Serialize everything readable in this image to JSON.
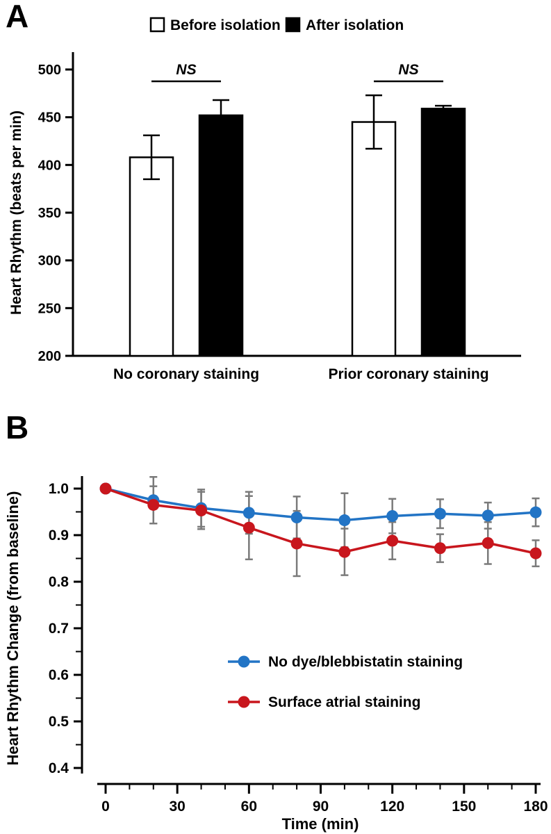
{
  "panels": {
    "a": {
      "label": "A"
    },
    "b": {
      "label": "B"
    }
  },
  "chart_data": [
    {
      "type": "bar",
      "panel": "A",
      "title": "",
      "ylabel": "Heart Rhythm (beats per min)",
      "ylim": [
        200,
        515
      ],
      "yticks": [
        200,
        250,
        300,
        350,
        400,
        450,
        500
      ],
      "categories": [
        "No coronary staining",
        "Prior coronary staining"
      ],
      "legend_position": "top",
      "grid": false,
      "series": [
        {
          "name": "Before isolation",
          "fill": "#ffffff",
          "values": [
            408,
            445
          ],
          "errors": [
            23,
            28
          ]
        },
        {
          "name": "After isolation",
          "fill": "#000000",
          "values": [
            452,
            459
          ],
          "errors": [
            16,
            3
          ]
        }
      ],
      "annotations": [
        {
          "text": "NS",
          "group_index": 0
        },
        {
          "text": "NS",
          "group_index": 1
        }
      ]
    },
    {
      "type": "line",
      "panel": "B",
      "title": "",
      "xlabel": "Time (min)",
      "ylabel": "Heart Rhythm Change (from baseline)",
      "xlim": [
        0,
        180
      ],
      "ylim": [
        0.4,
        1.0
      ],
      "xticks": [
        0,
        30,
        60,
        90,
        120,
        150,
        180
      ],
      "yticks": [
        0.4,
        0.5,
        0.6,
        0.7,
        0.8,
        0.9,
        1.0
      ],
      "x": [
        0,
        20,
        40,
        60,
        80,
        100,
        120,
        140,
        160,
        180
      ],
      "error_bar_color": "#7a7a7a",
      "legend_position": "inside-center",
      "grid": false,
      "series": [
        {
          "name": "No dye/blebbistatin staining",
          "color": "#2274c5",
          "values": [
            1.0,
            0.975,
            0.958,
            0.948,
            0.938,
            0.932,
            0.941,
            0.946,
            0.942,
            0.949
          ],
          "errors": [
            0.0,
            0.05,
            0.04,
            0.045,
            0.045,
            0.058,
            0.037,
            0.031,
            0.028,
            0.03
          ]
        },
        {
          "name": "Surface atrial staining",
          "color": "#c8161d",
          "values": [
            1.0,
            0.965,
            0.953,
            0.916,
            0.882,
            0.864,
            0.888,
            0.872,
            0.883,
            0.861
          ],
          "errors": [
            0.0,
            0.04,
            0.04,
            0.068,
            0.07,
            0.05,
            0.04,
            0.03,
            0.045,
            0.028
          ]
        }
      ]
    }
  ]
}
